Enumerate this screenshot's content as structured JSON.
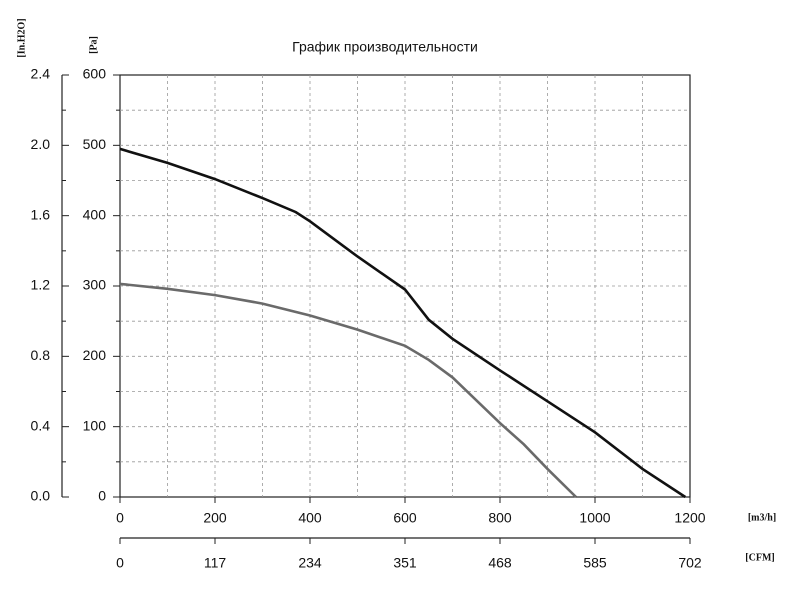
{
  "chart_data": {
    "type": "line",
    "title": "График производительности",
    "xlabel": "[m3/h]",
    "x2label": "[CFM]",
    "ylabel": "[Pa]",
    "y2label": "[In.H2O]",
    "xlim": [
      0,
      1200
    ],
    "xticks": [
      0,
      200,
      400,
      600,
      800,
      1000,
      1200
    ],
    "x2lim": [
      0,
      702
    ],
    "x2ticks": [
      0,
      117,
      234,
      351,
      468,
      585,
      702
    ],
    "ylim": [
      0,
      600
    ],
    "yticks": [
      0,
      100,
      200,
      300,
      400,
      500,
      600
    ],
    "y2lim": [
      0,
      2.4
    ],
    "y2ticks": [
      {
        "value": 0,
        "label": "0.0"
      },
      0.4,
      0.8,
      1.2,
      1.6,
      {
        "value": 2,
        "label": "2.0"
      },
      2.4
    ],
    "grid": true,
    "series": [
      {
        "color": "#111111",
        "x": [
          0,
          100,
          200,
          300,
          370,
          400,
          500,
          600,
          650,
          700,
          800,
          900,
          1000,
          1100,
          1190
        ],
        "values": [
          495,
          475,
          452,
          425,
          405,
          392,
          342,
          295,
          252,
          225,
          180,
          136,
          92,
          40,
          0
        ]
      },
      {
        "color": "#6a6a6a",
        "x": [
          0,
          100,
          200,
          300,
          400,
          500,
          600,
          650,
          700,
          800,
          850,
          900,
          960
        ],
        "values": [
          303,
          296,
          287,
          275,
          258,
          238,
          215,
          195,
          170,
          105,
          75,
          40,
          0
        ]
      }
    ]
  }
}
